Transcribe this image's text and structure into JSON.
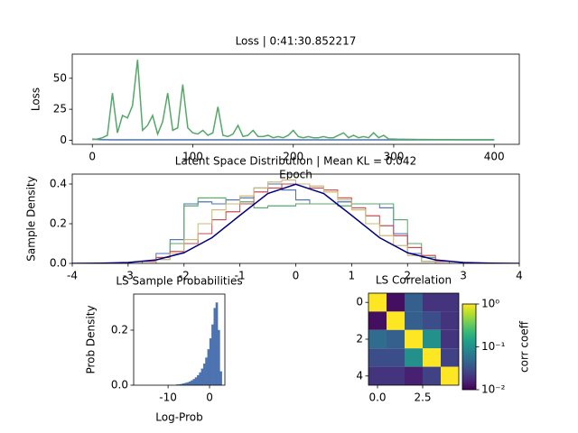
{
  "chart_data": [
    {
      "type": "line",
      "title": "Loss | 0:41:30.852217",
      "xlabel": "Epoch",
      "ylabel": "Loss",
      "x": [
        0,
        5,
        10,
        15,
        20,
        25,
        30,
        35,
        40,
        45,
        50,
        55,
        60,
        65,
        70,
        75,
        80,
        85,
        90,
        95,
        100,
        105,
        110,
        115,
        120,
        125,
        130,
        135,
        140,
        145,
        150,
        155,
        160,
        165,
        170,
        175,
        180,
        185,
        190,
        195,
        200,
        205,
        210,
        215,
        220,
        225,
        230,
        235,
        240,
        245,
        250,
        255,
        260,
        265,
        270,
        275,
        280,
        285,
        290,
        295,
        300,
        305,
        310,
        315,
        320,
        325,
        330,
        335,
        340,
        345,
        350,
        355,
        360,
        365,
        370,
        375,
        380,
        385,
        390,
        395,
        400
      ],
      "series": [
        {
          "color": "#4c72b0",
          "values": [
            1,
            0.6,
            0.4,
            0.4,
            0.3,
            0.3,
            0.3,
            0.3,
            0.3,
            0.3,
            0.3,
            0.3,
            0.3,
            0.3,
            0.3,
            0.3,
            0.3,
            0.3,
            0.3,
            0.3,
            0.3,
            0.3,
            0.3,
            0.3,
            0.3,
            0.3,
            0.3,
            0.3,
            0.3,
            0.3,
            0.3,
            0.3,
            0.3,
            0.3,
            0.3,
            0.3,
            0.3,
            0.3,
            0.3,
            0.3,
            0.3,
            0.3,
            0.3,
            0.3,
            0.3,
            0.3,
            0.3,
            0.3,
            0.3,
            0.3,
            0.3,
            0.3,
            0.3,
            0.3,
            0.3,
            0.3,
            0.3,
            0.3,
            0.3,
            0.3,
            0.3,
            0.3,
            0.3,
            0.3,
            0.3,
            0.3,
            0.3,
            0.3,
            0.3,
            0.3,
            0.3,
            0.3,
            0.3,
            0.3,
            0.3,
            0.3,
            0.3,
            0.3,
            0.3,
            0.3,
            0.3
          ]
        },
        {
          "color": "#55a868",
          "values": [
            0.5,
            1,
            2,
            4,
            38,
            6,
            20,
            18,
            28,
            65,
            8,
            12,
            20,
            5,
            15,
            38,
            8,
            10,
            45,
            10,
            6,
            5,
            8,
            4,
            6,
            27,
            4,
            3,
            5,
            12,
            3,
            4,
            8,
            3,
            3,
            4,
            2,
            3,
            2,
            4,
            8,
            3,
            2,
            3,
            2,
            2,
            3,
            2,
            2,
            4,
            6,
            2,
            4,
            2,
            3,
            2,
            6,
            2,
            4,
            1,
            1,
            0.8,
            0.8,
            0.7,
            0.7,
            0.6,
            0.6,
            0.6,
            0.5,
            0.5,
            0.5,
            0.5,
            0.5,
            0.4,
            0.4,
            0.4,
            0.4,
            0.4,
            0.4,
            0.4,
            0.4
          ]
        }
      ],
      "xlim": [
        -20,
        425
      ],
      "xticks": [
        0,
        100,
        200,
        300,
        400
      ],
      "ylim": [
        -3.3,
        69.5
      ],
      "yticks": [
        0,
        25,
        50
      ]
    },
    {
      "type": "histogram",
      "histtype": "step",
      "title": "Latent Space Distribution | Mean KL = 0.042",
      "ylabel": "Sample Density",
      "bins": [
        -3,
        -2.75,
        -2.5,
        -2.25,
        -2,
        -1.75,
        -1.5,
        -1.25,
        -1,
        -0.75,
        -0.5,
        -0.25,
        0,
        0.25,
        0.5,
        0.75,
        1,
        1.25,
        1.5,
        1.75,
        2,
        2.25,
        2.5,
        2.75,
        3
      ],
      "series": [
        {
          "color": "#4c72b0",
          "values": [
            0,
            0,
            0.05,
            0.12,
            0.3,
            0.31,
            0.3,
            0.32,
            0.33,
            0.38,
            0.4,
            0.37,
            0.32,
            0.3,
            0.3,
            0.31,
            0.3,
            0.3,
            0.28,
            0.15,
            0.05,
            0.01,
            0,
            0
          ]
        },
        {
          "color": "#55a868",
          "values": [
            0,
            0,
            0.02,
            0.1,
            0.29,
            0.33,
            0.33,
            0.3,
            0.31,
            0.28,
            0.29,
            0.29,
            0.3,
            0.3,
            0.3,
            0.29,
            0.3,
            0.3,
            0.3,
            0.22,
            0.1,
            0.03,
            0,
            0
          ]
        },
        {
          "color": "#c44e52",
          "values": [
            0,
            0.01,
            0.03,
            0.06,
            0.1,
            0.15,
            0.22,
            0.26,
            0.3,
            0.36,
            0.38,
            0.4,
            0.4,
            0.38,
            0.37,
            0.33,
            0.28,
            0.24,
            0.19,
            0.14,
            0.08,
            0.04,
            0.01,
            0
          ]
        },
        {
          "color": "#ccb974",
          "values": [
            0,
            0,
            0.02,
            0.05,
            0.12,
            0.2,
            0.27,
            0.3,
            0.34,
            0.38,
            0.41,
            0.42,
            0.4,
            0.39,
            0.36,
            0.32,
            0.27,
            0.2,
            0.14,
            0.09,
            0.04,
            0.01,
            0,
            0
          ]
        }
      ],
      "curve": {
        "color": "#000080",
        "x": [
          -4,
          -3.5,
          -3,
          -2.5,
          -2,
          -1.5,
          -1,
          -0.5,
          0,
          0.5,
          1,
          1.5,
          2,
          2.5,
          3,
          3.5,
          4
        ],
        "values": [
          0.0001,
          0.0009,
          0.0044,
          0.0175,
          0.054,
          0.1295,
          0.242,
          0.3521,
          0.3989,
          0.3521,
          0.242,
          0.1295,
          0.054,
          0.0175,
          0.0044,
          0.0009,
          0.0001
        ]
      },
      "xlim": [
        -4,
        4
      ],
      "xticks": [
        -4,
        -3,
        -2,
        -1,
        0,
        1,
        2,
        3,
        4
      ],
      "ylim": [
        0,
        0.45
      ],
      "yticks": [
        {
          "value": 0,
          "label": "0.0"
        },
        {
          "value": 0.2,
          "label": "0.2"
        },
        {
          "value": 0.4,
          "label": "0.4"
        }
      ]
    },
    {
      "type": "histogram",
      "histtype": "bar",
      "color": "#4c72b0",
      "title": "LS Sample Probabilities",
      "xlabel": "Log-Prob",
      "ylabel": "Prob Density",
      "bins": [
        -8,
        -7.5,
        -7,
        -6.5,
        -6,
        -5.5,
        -5,
        -4.5,
        -4,
        -3.5,
        -3,
        -2.5,
        -2,
        -1.5,
        -1,
        -0.5,
        0,
        0.5,
        1,
        1.5,
        2,
        2.5,
        3
      ],
      "values": [
        0.002,
        0.003,
        0.004,
        0.006,
        0.008,
        0.01,
        0.013,
        0.017,
        0.022,
        0.028,
        0.036,
        0.046,
        0.06,
        0.078,
        0.1,
        0.13,
        0.17,
        0.22,
        0.28,
        0.3,
        0.2,
        0.05
      ],
      "xlim": [
        -18.3,
        3.7
      ],
      "xticks": [
        -10,
        0
      ],
      "ylim": [
        0,
        0.331
      ],
      "yticks": [
        {
          "value": 0,
          "label": "0.0"
        },
        {
          "value": 0.2,
          "label": "0.2"
        }
      ]
    },
    {
      "type": "heatmap",
      "title": "LS Correlation",
      "colorbar_label": "corr coeff",
      "cmap": "viridis",
      "color_scale": "log",
      "matrix": [
        [
          1,
          0.012,
          0.04,
          0.02,
          0.02
        ],
        [
          0.012,
          1,
          0.04,
          0.03,
          0.02
        ],
        [
          0.05,
          0.04,
          1,
          0.1,
          0.02
        ],
        [
          0.03,
          0.03,
          0.1,
          1,
          0.025
        ],
        [
          0.02,
          0.02,
          0.015,
          0.025,
          1
        ]
      ],
      "clim": [
        0.01,
        1
      ],
      "cticks": [
        {
          "value": 1,
          "label": "10⁰"
        },
        {
          "value": 0.1,
          "label": "10⁻¹"
        },
        {
          "value": 0.01,
          "label": "10⁻²"
        }
      ],
      "xlim": [
        -0.5,
        4.5
      ],
      "xticks": [
        {
          "value": 0,
          "label": "0.0"
        },
        {
          "value": 2.5,
          "label": "2.5"
        }
      ],
      "ylim": [
        4.5,
        -0.5
      ],
      "yticks": [
        0,
        2,
        4
      ]
    }
  ]
}
